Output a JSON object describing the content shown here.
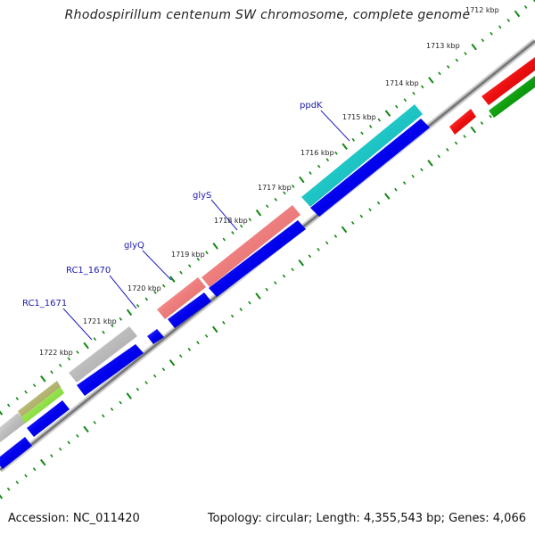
{
  "title": "Rhodospirillum centenum SW chromosome, complete genome",
  "footer": {
    "accession": "Accession: NC_011420",
    "summary": "Topology: circular; Length: 4,355,543 bp; Genes: 4,066"
  },
  "ticks": [
    "1712 kbp",
    "1713 kbp",
    "1714 kbp",
    "1715 kbp",
    "1716 kbp",
    "1717 kbp",
    "1718 kbp",
    "1719 kbp",
    "1720 kbp",
    "1721 kbp",
    "1722 kbp"
  ],
  "gene_labels": [
    "ppdK",
    "glyS",
    "glyQ",
    "RC1_1670",
    "RC1_1671"
  ],
  "colors": {
    "forward_cds": "#0000ee",
    "gene_cyan": "#20c8c8",
    "gene_pink": "#ef8080",
    "gene_gray": "#bdbdbd",
    "gene_olive": "#a8a858",
    "gene_lime": "#80ee20",
    "gene_red": "#ee1010",
    "gene_green": "#10a010",
    "backbone": "#8a8a8a",
    "tick_green": "#118811"
  }
}
